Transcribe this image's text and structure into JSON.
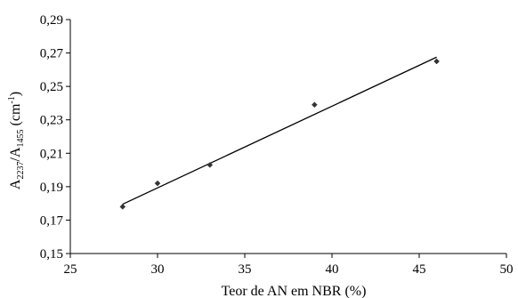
{
  "chart_data": {
    "type": "scatter",
    "title": "",
    "xlabel": "Teor de AN em NBR (%)",
    "ylabel": {
      "base_a": "A",
      "sub_a": "2237",
      "slash": "/",
      "base_b": "A",
      "sub_b": "1455",
      "unit_open": " (cm",
      "unit_sup": "-1",
      "unit_close": ")"
    },
    "xlim": [
      25,
      50
    ],
    "ylim": [
      0.15,
      0.29
    ],
    "x_ticks": [
      "25",
      "30",
      "35",
      "40",
      "45",
      "50"
    ],
    "y_ticks": [
      "0,15",
      "0,17",
      "0,19",
      "0,21",
      "0,23",
      "0,25",
      "0,27",
      "0,29"
    ],
    "grid": false,
    "legend": "none",
    "series": [
      {
        "marker": "diamond",
        "points": [
          {
            "x": 28,
            "y": 0.178
          },
          {
            "x": 30,
            "y": 0.192
          },
          {
            "x": 33,
            "y": 0.203
          },
          {
            "x": 39,
            "y": 0.239
          },
          {
            "x": 46,
            "y": 0.265
          }
        ]
      }
    ],
    "trendline": {
      "type": "linear",
      "from": {
        "x": 28,
        "y": 0.1795
      },
      "to": {
        "x": 46,
        "y": 0.2675
      }
    },
    "colors": {
      "axis": "#000000",
      "marker": "#333333",
      "line": "#000000"
    }
  }
}
